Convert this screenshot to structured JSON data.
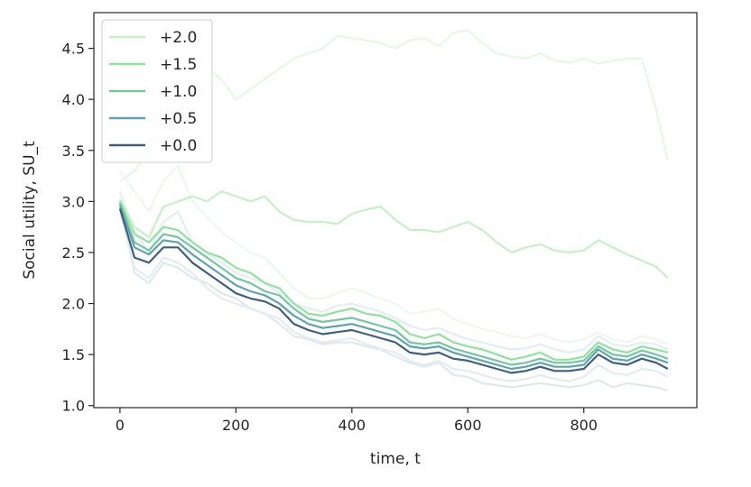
{
  "chart_data": {
    "type": "line",
    "xlabel": "time, t",
    "ylabel": "Social utility, SU_t",
    "xlim": [
      -45,
      995
    ],
    "ylim": [
      0.98,
      4.85
    ],
    "xticks": [
      0,
      200,
      400,
      600,
      800
    ],
    "yticks": [
      1.0,
      1.5,
      2.0,
      2.5,
      3.0,
      3.5,
      4.0,
      4.5
    ],
    "grid": false,
    "legend_position": "upper-left",
    "x": [
      0,
      25,
      50,
      75,
      100,
      125,
      150,
      175,
      200,
      225,
      250,
      275,
      300,
      325,
      350,
      375,
      400,
      425,
      450,
      475,
      500,
      525,
      550,
      575,
      600,
      625,
      650,
      675,
      700,
      725,
      750,
      775,
      800,
      825,
      850,
      875,
      900,
      925,
      945
    ],
    "series": [
      {
        "name": "+2.0",
        "color": "#c5f0c8",
        "values": [
          3.02,
          2.75,
          2.65,
          2.95,
          3.0,
          3.05,
          3.0,
          3.1,
          3.05,
          3.0,
          3.05,
          2.9,
          2.82,
          2.8,
          2.8,
          2.78,
          2.88,
          2.92,
          2.95,
          2.82,
          2.72,
          2.72,
          2.7,
          2.75,
          2.8,
          2.72,
          2.6,
          2.5,
          2.55,
          2.58,
          2.52,
          2.5,
          2.52,
          2.62,
          2.55,
          2.48,
          2.42,
          2.36,
          2.25
        ]
      },
      {
        "name": "+1.5",
        "color": "#8fe39b",
        "values": [
          3.0,
          2.68,
          2.6,
          2.75,
          2.72,
          2.6,
          2.5,
          2.45,
          2.35,
          2.3,
          2.2,
          2.15,
          2.0,
          1.9,
          1.88,
          1.92,
          1.95,
          1.9,
          1.88,
          1.82,
          1.7,
          1.66,
          1.7,
          1.62,
          1.58,
          1.55,
          1.5,
          1.45,
          1.48,
          1.52,
          1.45,
          1.45,
          1.48,
          1.62,
          1.55,
          1.52,
          1.58,
          1.55,
          1.52
        ]
      },
      {
        "name": "+1.0",
        "color": "#72c7a1",
        "values": [
          2.98,
          2.6,
          2.52,
          2.68,
          2.65,
          2.55,
          2.45,
          2.35,
          2.25,
          2.2,
          2.12,
          2.08,
          1.95,
          1.85,
          1.82,
          1.84,
          1.86,
          1.82,
          1.78,
          1.74,
          1.62,
          1.6,
          1.62,
          1.56,
          1.52,
          1.48,
          1.44,
          1.4,
          1.42,
          1.46,
          1.42,
          1.42,
          1.44,
          1.58,
          1.5,
          1.48,
          1.54,
          1.5,
          1.46
        ]
      },
      {
        "name": "+0.5",
        "color": "#5ea3ad",
        "values": [
          2.96,
          2.55,
          2.48,
          2.62,
          2.6,
          2.48,
          2.38,
          2.28,
          2.18,
          2.12,
          2.08,
          2.0,
          1.88,
          1.8,
          1.76,
          1.78,
          1.8,
          1.76,
          1.72,
          1.68,
          1.58,
          1.56,
          1.58,
          1.52,
          1.48,
          1.44,
          1.4,
          1.36,
          1.38,
          1.42,
          1.38,
          1.38,
          1.4,
          1.55,
          1.46,
          1.44,
          1.5,
          1.46,
          1.42
        ]
      },
      {
        "name": "+0.0",
        "color": "#3e5e82",
        "values": [
          2.93,
          2.45,
          2.4,
          2.55,
          2.55,
          2.4,
          2.3,
          2.2,
          2.1,
          2.05,
          2.02,
          1.95,
          1.8,
          1.74,
          1.7,
          1.72,
          1.74,
          1.7,
          1.66,
          1.62,
          1.52,
          1.5,
          1.52,
          1.46,
          1.44,
          1.4,
          1.36,
          1.32,
          1.34,
          1.38,
          1.34,
          1.34,
          1.36,
          1.5,
          1.42,
          1.4,
          1.46,
          1.42,
          1.36
        ]
      }
    ],
    "faint_series": [
      {
        "color": "#e6f7e6",
        "values": [
          3.2,
          3.3,
          3.5,
          3.8,
          3.9,
          4.1,
          4.3,
          4.2,
          4.0,
          4.1,
          4.2,
          4.3,
          4.4,
          4.45,
          4.5,
          4.62,
          4.6,
          4.58,
          4.55,
          4.5,
          4.58,
          4.6,
          4.52,
          4.65,
          4.68,
          4.55,
          4.45,
          4.42,
          4.4,
          4.45,
          4.38,
          4.36,
          4.4,
          4.35,
          4.38,
          4.4,
          4.4,
          3.9,
          3.4
        ]
      },
      {
        "color": "#dfe8ec",
        "values": [
          3.0,
          2.3,
          2.2,
          2.4,
          2.35,
          2.25,
          2.2,
          2.1,
          2.05,
          1.95,
          1.9,
          1.8,
          1.68,
          1.65,
          1.6,
          1.62,
          1.62,
          1.58,
          1.55,
          1.48,
          1.42,
          1.38,
          1.42,
          1.3,
          1.28,
          1.22,
          1.2,
          1.18,
          1.2,
          1.22,
          1.2,
          1.18,
          1.2,
          1.25,
          1.18,
          1.22,
          1.2,
          1.18,
          1.15
        ]
      },
      {
        "color": "#e2eef0",
        "values": [
          3.1,
          2.7,
          2.5,
          2.8,
          2.9,
          2.6,
          2.5,
          2.4,
          2.3,
          2.25,
          2.2,
          2.1,
          2.0,
          1.95,
          1.92,
          1.98,
          2.0,
          1.96,
          1.92,
          1.86,
          1.78,
          1.74,
          1.76,
          1.7,
          1.65,
          1.62,
          1.58,
          1.55,
          1.56,
          1.6,
          1.55,
          1.52,
          1.55,
          1.68,
          1.6,
          1.58,
          1.62,
          1.6,
          1.55
        ]
      },
      {
        "color": "#eef7ee",
        "values": [
          3.3,
          3.1,
          2.9,
          3.2,
          3.35,
          3.0,
          2.85,
          2.7,
          2.6,
          2.5,
          2.45,
          2.3,
          2.15,
          2.05,
          2.05,
          2.1,
          2.15,
          2.1,
          2.05,
          2.0,
          1.9,
          1.92,
          1.95,
          1.85,
          1.8,
          1.75,
          1.72,
          1.68,
          1.66,
          1.7,
          1.65,
          1.62,
          1.65,
          1.72,
          1.65,
          1.62,
          1.68,
          1.65,
          1.6
        ]
      },
      {
        "color": "#e4ecef",
        "values": [
          2.9,
          2.35,
          2.25,
          2.45,
          2.4,
          2.3,
          2.15,
          2.05,
          2.0,
          1.95,
          1.9,
          1.85,
          1.72,
          1.66,
          1.62,
          1.64,
          1.66,
          1.6,
          1.56,
          1.52,
          1.44,
          1.4,
          1.44,
          1.36,
          1.34,
          1.3,
          1.26,
          1.24,
          1.26,
          1.3,
          1.26,
          1.24,
          1.28,
          1.4,
          1.32,
          1.3,
          1.36,
          1.34,
          1.28
        ]
      }
    ]
  }
}
